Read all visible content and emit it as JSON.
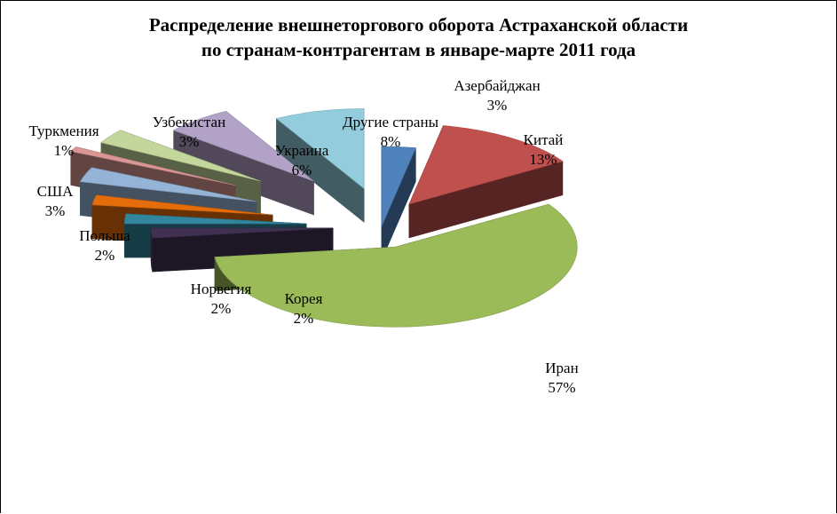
{
  "chart_data": {
    "type": "pie",
    "title": "Распределение внешнеторгового оборота Астраханской области по странам-контрагентам в январе-марте 2011 года",
    "title_lines": [
      "Распределение внешнеторгового оборота Астраханской области",
      "по странам-контрагентам в январе-марте 2011 года"
    ],
    "value_format": "percent",
    "slices": [
      {
        "name": "Азербайджан",
        "value": 3,
        "label": "3%",
        "color": "#4f81bd"
      },
      {
        "name": "Китай",
        "value": 13,
        "label": "13%",
        "color": "#c0504d"
      },
      {
        "name": "Иран",
        "value": 57,
        "label": "57%",
        "color": "#9bbb59"
      },
      {
        "name": "Корея",
        "value": 2,
        "label": "2%",
        "color": "#403152"
      },
      {
        "name": "Норвегия",
        "value": 2,
        "label": "2%",
        "color": "#31859c"
      },
      {
        "name": "Польша",
        "value": 2,
        "label": "2%",
        "color": "#e46c0a"
      },
      {
        "name": "США",
        "value": 3,
        "label": "3%",
        "color": "#95b3d7"
      },
      {
        "name": "Туркмения",
        "value": 1,
        "label": "1%",
        "color": "#d99694"
      },
      {
        "name": "Узбекистан",
        "value": 3,
        "label": "3%",
        "color": "#c3d69b"
      },
      {
        "name": "Украина",
        "value": 6,
        "label": "6%",
        "color": "#b3a2c7"
      },
      {
        "name": "Другие страны",
        "value": 8,
        "label": "8%",
        "color": "#93cddd"
      }
    ]
  }
}
